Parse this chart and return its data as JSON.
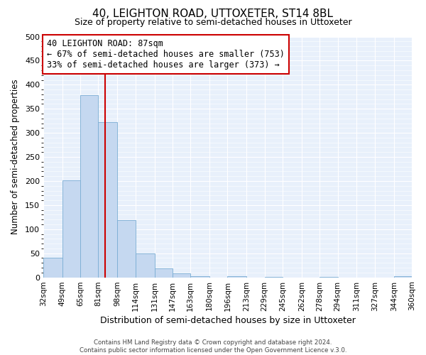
{
  "title": "40, LEIGHTON ROAD, UTTOXETER, ST14 8BL",
  "subtitle": "Size of property relative to semi-detached houses in Uttoxeter",
  "xlabel": "Distribution of semi-detached houses by size in Uttoxeter",
  "ylabel": "Number of semi-detached properties",
  "bin_labels": [
    "32sqm",
    "49sqm",
    "65sqm",
    "81sqm",
    "98sqm",
    "114sqm",
    "131sqm",
    "147sqm",
    "163sqm",
    "180sqm",
    "196sqm",
    "213sqm",
    "229sqm",
    "245sqm",
    "262sqm",
    "278sqm",
    "294sqm",
    "311sqm",
    "327sqm",
    "344sqm",
    "360sqm"
  ],
  "bin_edges": [
    32,
    49,
    65,
    81,
    98,
    114,
    131,
    147,
    163,
    180,
    196,
    213,
    229,
    245,
    262,
    278,
    294,
    311,
    327,
    344,
    360
  ],
  "bar_heights": [
    40,
    202,
    379,
    323,
    119,
    50,
    19,
    8,
    3,
    0,
    3,
    0,
    1,
    0,
    0,
    1,
    0,
    0,
    0,
    2
  ],
  "bar_color": "#c5d8f0",
  "bar_edgecolor": "#7aadd4",
  "property_line_x": 87,
  "property_line_color": "#cc0000",
  "annotation_title": "40 LEIGHTON ROAD: 87sqm",
  "annotation_line1": "← 67% of semi-detached houses are smaller (753)",
  "annotation_line2": "33% of semi-detached houses are larger (373) →",
  "annotation_box_edgecolor": "#cc0000",
  "ylim": [
    0,
    500
  ],
  "yticks": [
    0,
    50,
    100,
    150,
    200,
    250,
    300,
    350,
    400,
    450,
    500
  ],
  "footer_line1": "Contains HM Land Registry data © Crown copyright and database right 2024.",
  "footer_line2": "Contains public sector information licensed under the Open Government Licence v.3.0.",
  "plot_bg_color": "#e8f0fb",
  "grid_color": "#ffffff"
}
